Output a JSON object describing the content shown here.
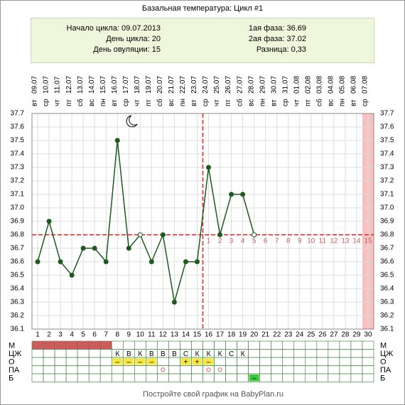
{
  "chart_data": {
    "type": "line",
    "title": "Базальная температура: Цикл #1",
    "categories": [
      1,
      2,
      3,
      4,
      5,
      6,
      7,
      8,
      9,
      10,
      11,
      12,
      13,
      14,
      15,
      16,
      17,
      18,
      19,
      20,
      21,
      22,
      23,
      24,
      25,
      26,
      27,
      28,
      29,
      30
    ],
    "dates": [
      "09.07",
      "10.07",
      "11.07",
      "12.07",
      "13.07",
      "14.07",
      "15.07",
      "16.07",
      "17.07",
      "18.07",
      "19.07",
      "20.07",
      "21.07",
      "22.07",
      "23.07",
      "24.07",
      "25.07",
      "26.07",
      "27.07",
      "28.07",
      "29.07",
      "30.07",
      "31.07",
      "01.08",
      "02.08",
      "03.08",
      "04.08",
      "05.08",
      "06.08",
      "07.08"
    ],
    "weekdays": [
      "вт",
      "ср",
      "чт",
      "пт",
      "сб",
      "вс",
      "пн",
      "вт",
      "ср",
      "чт",
      "пт",
      "сб",
      "вс",
      "пн",
      "вт",
      "ср",
      "чт",
      "пт",
      "сб",
      "вс",
      "пн",
      "вт",
      "ср",
      "чт",
      "пт",
      "сб",
      "вс",
      "пн",
      "вт",
      "ср"
    ],
    "values": [
      36.6,
      36.9,
      36.6,
      36.5,
      36.7,
      36.7,
      36.6,
      37.5,
      36.7,
      36.8,
      36.6,
      36.8,
      36.3,
      36.6,
      36.6,
      37.3,
      36.8,
      37.1,
      37.1,
      36.8,
      null,
      null,
      null,
      null,
      null,
      null,
      null,
      null,
      null,
      null
    ],
    "point_style": [
      "filled",
      "filled",
      "filled",
      "filled",
      "filled",
      "filled",
      "filled",
      "filled",
      "filled",
      "open",
      "filled",
      "filled",
      "filled",
      "filled",
      "filled",
      "filled",
      "filled",
      "filled",
      "filled",
      "open",
      null,
      null,
      null,
      null,
      null,
      null,
      null,
      null,
      null,
      null
    ],
    "color": "#1e5a1e",
    "ylim": [
      36.1,
      37.7
    ],
    "yticks": [
      36.1,
      36.2,
      36.3,
      36.4,
      36.5,
      36.6,
      36.7,
      36.8,
      36.9,
      {
        "value": 37,
        "label": "37.0"
      },
      37.1,
      37.2,
      37.3,
      37.4,
      37.5,
      37.6,
      37.7
    ],
    "grid": true,
    "coverline": 36.8,
    "ovulation_day": 15,
    "phase2_days": [
      1,
      2,
      3,
      4,
      5,
      6,
      7,
      8,
      9,
      10,
      11,
      12,
      13,
      14,
      15
    ],
    "highlight_day": 30
  },
  "info": {
    "cycle_start": "Начало цикла: 09.07.2013",
    "cycle_day": "День цикла: 20",
    "ovulation_day": "День овуляции: 15",
    "phase1": "1ая фаза: 36.69",
    "phase2": "2ая фаза: 37.02",
    "difference": "Разница: 0,33"
  },
  "table": {
    "rows": [
      {
        "label": "М",
        "color": "#cc5b5b",
        "marks": [
          true,
          true,
          true,
          true,
          true,
          true,
          true,
          null,
          null,
          null,
          null,
          null,
          null,
          null,
          null,
          null,
          null,
          null,
          null,
          null,
          null,
          null,
          null,
          null,
          null,
          null,
          null,
          null,
          null,
          null
        ]
      },
      {
        "label": "ЦЖ",
        "color": "#ffffff",
        "cells": [
          null,
          null,
          null,
          null,
          null,
          null,
          null,
          "К",
          "В",
          "К",
          "В",
          "В",
          "В",
          "С",
          "К",
          "К",
          "К",
          "С",
          "К",
          null,
          null,
          null,
          null,
          null,
          null,
          null,
          null,
          null,
          null,
          null
        ]
      },
      {
        "label": "О",
        "color": "#f5e642",
        "cells": [
          null,
          null,
          null,
          null,
          null,
          null,
          null,
          "–",
          "–",
          "–",
          "–",
          null,
          null,
          "+",
          "+",
          "–",
          null,
          null,
          null,
          null,
          null,
          null,
          null,
          null,
          null,
          null,
          null,
          null,
          null,
          null
        ]
      },
      {
        "label": "ПА",
        "color": "#e06060",
        "marks": [
          null,
          null,
          null,
          null,
          null,
          null,
          null,
          null,
          null,
          null,
          null,
          true,
          null,
          null,
          null,
          true,
          true,
          null,
          null,
          null,
          null,
          null,
          null,
          null,
          null,
          null,
          null,
          null,
          null,
          null
        ]
      },
      {
        "label": "Б",
        "color": "#3cc83c",
        "cells": [
          null,
          null,
          null,
          null,
          null,
          null,
          null,
          null,
          null,
          null,
          null,
          null,
          null,
          null,
          null,
          null,
          null,
          null,
          null,
          "–",
          null,
          null,
          null,
          null,
          null,
          null,
          null,
          null,
          null,
          null
        ]
      }
    ]
  },
  "footer": "Постройте свой график на BabyPlan.ru"
}
